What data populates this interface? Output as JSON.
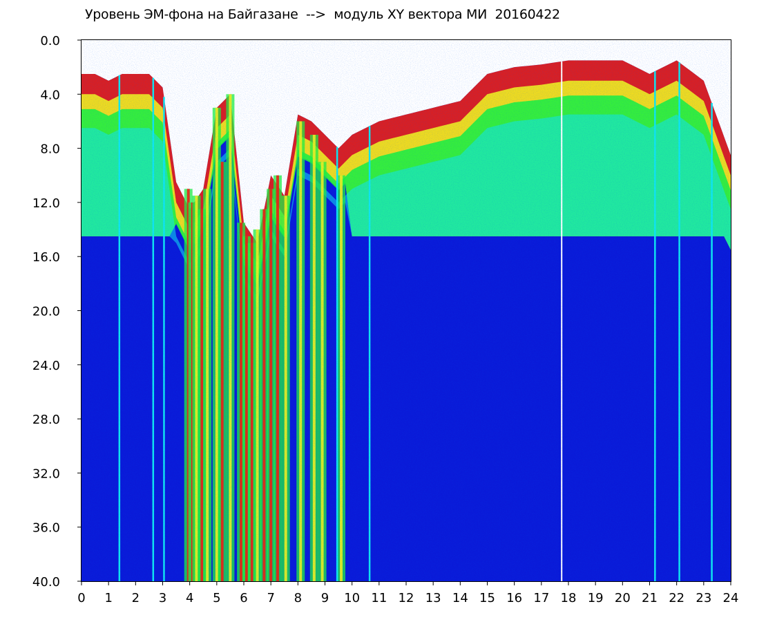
{
  "chart_data": {
    "type": "heatmap",
    "title": "Уровень ЭМ-фона на Байгазане  -->  модуль XY вектора МИ  20160422",
    "xlabel": "",
    "ylabel": "",
    "xlim": [
      0,
      24
    ],
    "ylim": [
      0,
      40
    ],
    "y_inverted": true,
    "grid": false,
    "x_ticks": [
      "0",
      "1",
      "2",
      "3",
      "4",
      "5",
      "6",
      "7",
      "8",
      "9",
      "10",
      "11",
      "12",
      "13",
      "14",
      "15",
      "16",
      "17",
      "18",
      "19",
      "20",
      "21",
      "22",
      "23",
      "24"
    ],
    "y_ticks": [
      "0.0",
      "4.0",
      "8.0",
      "12.0",
      "16.0",
      "20.0",
      "24.0",
      "28.0",
      "32.0",
      "36.0",
      "40.0"
    ],
    "colors": {
      "background": "#0a1ad8",
      "low": "#0a1ad8",
      "mid_low": "#10e6f0",
      "mid": "#20f040",
      "mid_high": "#f0f020",
      "high": "#f02010",
      "frame": "#000000"
    },
    "upper_boundary": [
      {
        "x": 0.0,
        "y": 2.5
      },
      {
        "x": 0.5,
        "y": 2.5
      },
      {
        "x": 1.0,
        "y": 3.0
      },
      {
        "x": 1.5,
        "y": 2.5
      },
      {
        "x": 2.0,
        "y": 2.5
      },
      {
        "x": 2.5,
        "y": 2.5
      },
      {
        "x": 3.0,
        "y": 3.5
      },
      {
        "x": 3.5,
        "y": 10.5
      },
      {
        "x": 4.0,
        "y": 12.5
      },
      {
        "x": 4.5,
        "y": 11.0
      },
      {
        "x": 5.0,
        "y": 5.0
      },
      {
        "x": 5.5,
        "y": 4.0
      },
      {
        "x": 6.0,
        "y": 13.5
      },
      {
        "x": 6.5,
        "y": 15.0
      },
      {
        "x": 7.0,
        "y": 10.0
      },
      {
        "x": 7.5,
        "y": 11.5
      },
      {
        "x": 8.0,
        "y": 5.5
      },
      {
        "x": 8.5,
        "y": 6.0
      },
      {
        "x": 9.0,
        "y": 7.0
      },
      {
        "x": 9.5,
        "y": 8.0
      },
      {
        "x": 10.0,
        "y": 7.0
      },
      {
        "x": 11.0,
        "y": 6.0
      },
      {
        "x": 12.0,
        "y": 5.5
      },
      {
        "x": 13.0,
        "y": 5.0
      },
      {
        "x": 14.0,
        "y": 4.5
      },
      {
        "x": 15.0,
        "y": 2.5
      },
      {
        "x": 16.0,
        "y": 2.0
      },
      {
        "x": 17.0,
        "y": 1.8
      },
      {
        "x": 18.0,
        "y": 1.5
      },
      {
        "x": 19.0,
        "y": 1.5
      },
      {
        "x": 20.0,
        "y": 1.5
      },
      {
        "x": 21.0,
        "y": 2.5
      },
      {
        "x": 22.0,
        "y": 1.5
      },
      {
        "x": 23.0,
        "y": 3.0
      },
      {
        "x": 24.0,
        "y": 8.5
      }
    ],
    "bright_streaks": [
      {
        "x": 3.95,
        "top": 11.0,
        "intensity": "high"
      },
      {
        "x": 4.1,
        "top": 12.0,
        "intensity": "high"
      },
      {
        "x": 4.25,
        "top": 11.5,
        "intensity": "mid"
      },
      {
        "x": 4.45,
        "top": 12.5,
        "intensity": "high"
      },
      {
        "x": 4.65,
        "top": 11.0,
        "intensity": "mid"
      },
      {
        "x": 5.0,
        "top": 5.0,
        "intensity": "mid"
      },
      {
        "x": 5.2,
        "top": 9.0,
        "intensity": "high"
      },
      {
        "x": 5.5,
        "top": 4.0,
        "intensity": "mid"
      },
      {
        "x": 5.9,
        "top": 13.5,
        "intensity": "high"
      },
      {
        "x": 6.1,
        "top": 14.5,
        "intensity": "high"
      },
      {
        "x": 6.3,
        "top": 15.0,
        "intensity": "high"
      },
      {
        "x": 6.5,
        "top": 14.0,
        "intensity": "mid"
      },
      {
        "x": 6.75,
        "top": 12.5,
        "intensity": "high"
      },
      {
        "x": 7.0,
        "top": 11.0,
        "intensity": "high"
      },
      {
        "x": 7.25,
        "top": 10.0,
        "intensity": "high"
      },
      {
        "x": 7.55,
        "top": 11.5,
        "intensity": "mid"
      },
      {
        "x": 8.1,
        "top": 6.0,
        "intensity": "mid"
      },
      {
        "x": 8.6,
        "top": 7.0,
        "intensity": "mid"
      },
      {
        "x": 8.9,
        "top": 9.0,
        "intensity": "mid"
      },
      {
        "x": 9.6,
        "top": 10.0,
        "intensity": "mid"
      }
    ],
    "cyan_lines_x": [
      1.4,
      2.65,
      3.05,
      9.45,
      10.65,
      21.2,
      22.1,
      23.3
    ],
    "white_line_x": 17.75
  }
}
